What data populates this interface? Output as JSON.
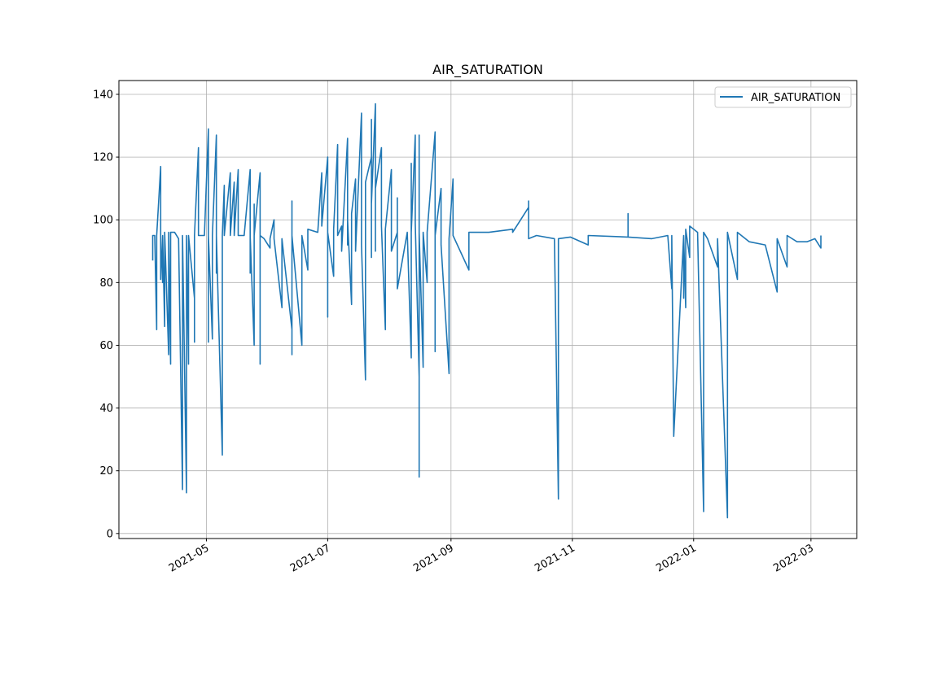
{
  "chart_data": {
    "type": "line",
    "title": "AIR_SATURATION",
    "xlabel": "",
    "ylabel": "",
    "grid": true,
    "legend": {
      "placement": "top-right",
      "entries": [
        "AIR_SATURATION"
      ]
    },
    "xlim": [
      "2021-03-18",
      "2022-03-24"
    ],
    "ylim": [
      -1.6,
      144.4
    ],
    "x_ticks": [
      {
        "date": "2021-05-01",
        "label": "2021-05"
      },
      {
        "date": "2021-07-01",
        "label": "2021-07"
      },
      {
        "date": "2021-09-01",
        "label": "2021-09"
      },
      {
        "date": "2021-11-01",
        "label": "2021-11"
      },
      {
        "date": "2022-01-01",
        "label": "2022-01"
      },
      {
        "date": "2022-03-01",
        "label": "2022-03"
      }
    ],
    "y_ticks": [
      0,
      20,
      40,
      60,
      80,
      100,
      120,
      140
    ],
    "series": [
      {
        "name": "AIR_SATURATION",
        "color": "#1f77b4",
        "points": [
          [
            "2021-04-04",
            [
              87,
              95
            ]
          ],
          [
            "2021-04-05",
            [
              95
            ]
          ],
          [
            "2021-04-06",
            [
              65,
              95
            ]
          ],
          [
            "2021-04-08",
            [
              117,
              81,
              95
            ]
          ],
          [
            "2021-04-09",
            [
              80,
              95
            ]
          ],
          [
            "2021-04-10",
            [
              66,
              96
            ]
          ],
          [
            "2021-04-12",
            [
              57,
              96
            ]
          ],
          [
            "2021-04-13",
            [
              54,
              60,
              96
            ]
          ],
          [
            "2021-04-15",
            [
              96
            ]
          ],
          [
            "2021-04-17",
            [
              94
            ]
          ],
          [
            "2021-04-19",
            [
              14,
              95
            ]
          ],
          [
            "2021-04-21",
            [
              13,
              95
            ]
          ],
          [
            "2021-04-22",
            [
              54,
              95
            ]
          ],
          [
            "2021-04-25",
            [
              75,
              61,
              95
            ]
          ],
          [
            "2021-04-27",
            [
              123,
              95
            ]
          ],
          [
            "2021-04-30",
            [
              95
            ]
          ],
          [
            "2021-05-02",
            [
              129,
              61,
              95
            ]
          ],
          [
            "2021-05-04",
            [
              62,
              95
            ]
          ],
          [
            "2021-05-06",
            [
              127,
              83,
              95
            ]
          ],
          [
            "2021-05-09",
            [
              25,
              95
            ]
          ],
          [
            "2021-05-10",
            [
              111,
              95
            ]
          ],
          [
            "2021-05-13",
            [
              115,
              95
            ]
          ],
          [
            "2021-05-15",
            [
              112,
              95
            ]
          ],
          [
            "2021-05-17",
            [
              116,
              95
            ]
          ],
          [
            "2021-05-20",
            [
              95
            ]
          ],
          [
            "2021-05-23",
            [
              116,
              83,
              95
            ]
          ],
          [
            "2021-05-25",
            [
              60,
              105,
              95
            ]
          ],
          [
            "2021-05-28",
            [
              115,
              54,
              110,
              95
            ]
          ],
          [
            "2021-05-30",
            [
              94
            ]
          ],
          [
            "2021-06-02",
            [
              91,
              94
            ]
          ],
          [
            "2021-06-04",
            [
              100,
              94
            ]
          ],
          [
            "2021-06-08",
            [
              72,
              94
            ]
          ],
          [
            "2021-06-13",
            [
              65,
              106,
              57,
              95
            ]
          ],
          [
            "2021-06-18",
            [
              60,
              95
            ]
          ],
          [
            "2021-06-21",
            [
              84,
              97
            ]
          ],
          [
            "2021-06-26",
            [
              96
            ]
          ],
          [
            "2021-06-28",
            [
              115,
              98
            ]
          ],
          [
            "2021-07-01",
            [
              120,
              69,
              96
            ]
          ],
          [
            "2021-07-04",
            [
              82,
              97
            ]
          ],
          [
            "2021-07-06",
            [
              124,
              95
            ]
          ],
          [
            "2021-07-08",
            [
              98,
              90
            ]
          ],
          [
            "2021-07-11",
            [
              126,
              92,
              100
            ]
          ],
          [
            "2021-07-13",
            [
              73,
              102
            ]
          ],
          [
            "2021-07-15",
            [
              113,
              90
            ]
          ],
          [
            "2021-07-18",
            [
              134,
              95,
              118,
              92
            ]
          ],
          [
            "2021-07-20",
            [
              49,
              112
            ]
          ],
          [
            "2021-07-23",
            [
              120,
              88,
              132,
              105
            ]
          ],
          [
            "2021-07-25",
            [
              137,
              90,
              110
            ]
          ],
          [
            "2021-07-28",
            [
              123,
              98
            ]
          ],
          [
            "2021-07-30",
            [
              65,
              97
            ]
          ],
          [
            "2021-08-02",
            [
              116,
              90
            ]
          ],
          [
            "2021-08-05",
            [
              96,
              107,
              78
            ]
          ],
          [
            "2021-08-10",
            [
              96
            ]
          ],
          [
            "2021-08-12",
            [
              56,
              118,
              96
            ]
          ],
          [
            "2021-08-14",
            [
              127,
              99
            ]
          ],
          [
            "2021-08-16",
            [
              50,
              127,
              18,
              96
            ]
          ],
          [
            "2021-08-18",
            [
              53,
              96
            ]
          ],
          [
            "2021-08-20",
            [
              80,
              96
            ]
          ],
          [
            "2021-08-24",
            [
              128,
              58,
              95
            ]
          ],
          [
            "2021-08-27",
            [
              110,
              95,
              92
            ]
          ],
          [
            "2021-08-31",
            [
              51,
              94
            ]
          ],
          [
            "2021-09-02",
            [
              113,
              95
            ]
          ],
          [
            "2021-09-10",
            [
              84,
              96
            ]
          ],
          [
            "2021-09-20",
            [
              96
            ]
          ],
          [
            "2021-10-02",
            [
              97,
              96
            ]
          ],
          [
            "2021-10-10",
            [
              104,
              95,
              106,
              94
            ]
          ],
          [
            "2021-10-14",
            [
              95
            ]
          ],
          [
            "2021-10-23",
            [
              94
            ]
          ],
          [
            "2021-10-25",
            [
              11,
              94
            ]
          ],
          [
            "2021-10-31",
            [
              94.5
            ]
          ],
          [
            "2021-11-09",
            [
              92,
              95
            ]
          ],
          [
            "2021-11-29",
            [
              94.5,
              102,
              94.5
            ]
          ],
          [
            "2021-12-11",
            [
              94
            ]
          ],
          [
            "2021-12-19",
            [
              95
            ]
          ],
          [
            "2021-12-21",
            [
              78,
              95
            ]
          ],
          [
            "2021-12-22",
            [
              31
            ]
          ],
          [
            "2021-12-27",
            [
              95,
              75,
              95
            ]
          ],
          [
            "2021-12-28",
            [
              72,
              97
            ]
          ],
          [
            "2021-12-30",
            [
              88,
              98
            ]
          ],
          [
            "2022-01-03",
            [
              96
            ]
          ],
          [
            "2022-01-06",
            [
              7,
              96
            ]
          ],
          [
            "2022-01-08",
            [
              94
            ]
          ],
          [
            "2022-01-13",
            [
              85,
              94
            ]
          ],
          [
            "2022-01-18",
            [
              5,
              96
            ]
          ],
          [
            "2022-01-19",
            [
              93
            ]
          ],
          [
            "2022-01-23",
            [
              81,
              96
            ]
          ],
          [
            "2022-01-29",
            [
              93
            ]
          ],
          [
            "2022-02-06",
            [
              92
            ]
          ],
          [
            "2022-02-12",
            [
              77,
              94
            ]
          ],
          [
            "2022-02-17",
            [
              85,
              95
            ]
          ],
          [
            "2022-02-22",
            [
              93
            ]
          ],
          [
            "2022-02-27",
            [
              93
            ]
          ],
          [
            "2022-03-03",
            [
              94
            ]
          ],
          [
            "2022-03-06",
            [
              91,
              95
            ]
          ]
        ]
      }
    ]
  }
}
